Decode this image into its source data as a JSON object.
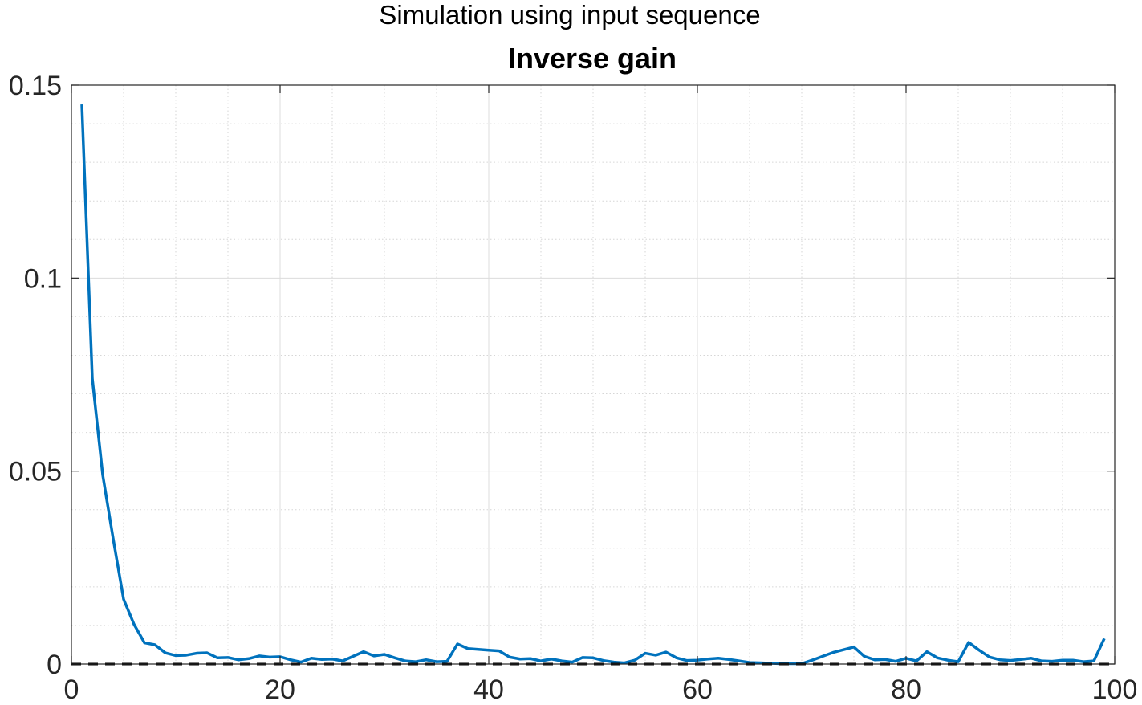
{
  "chart_data": {
    "type": "line",
    "subtitle": "Simulation using input sequence",
    "title": "Inverse gain",
    "xlabel": "",
    "ylabel": "",
    "xlim": [
      0,
      100
    ],
    "ylim": [
      0,
      0.15
    ],
    "xticks": [
      0,
      20,
      40,
      60,
      80,
      100
    ],
    "xtick_labels": [
      "0",
      "20",
      "40",
      "60",
      "80",
      "100"
    ],
    "yticks": [
      0,
      0.05,
      0.1,
      0.15
    ],
    "ytick_labels": [
      "0",
      "0.05",
      "0.1",
      "0.15"
    ],
    "x_minor_step": 5,
    "y_minor_step": 0.01,
    "grid": true,
    "minor_grid": true,
    "box": true,
    "series": [
      {
        "color": "#0072BD",
        "style": "solid",
        "x": [
          1,
          2,
          3,
          4,
          5,
          6,
          7,
          8,
          9,
          10,
          11,
          12,
          13,
          14,
          15,
          16,
          17,
          18,
          19,
          20,
          21,
          22,
          23,
          24,
          25,
          26,
          27,
          28,
          29,
          30,
          31,
          32,
          33,
          34,
          35,
          36,
          37,
          38,
          39,
          40,
          41,
          42,
          43,
          44,
          45,
          46,
          47,
          48,
          49,
          50,
          51,
          52,
          53,
          54,
          55,
          56,
          57,
          58,
          59,
          60,
          61,
          62,
          63,
          64,
          65,
          66,
          67,
          68,
          69,
          70,
          71,
          72,
          73,
          74,
          75,
          76,
          77,
          78,
          79,
          80,
          81,
          82,
          83,
          84,
          85,
          86,
          87,
          88,
          89,
          90,
          91,
          92,
          93,
          94,
          95,
          96,
          97,
          98,
          99
        ],
        "values": [
          0.145,
          0.074,
          0.049,
          0.0325,
          0.0168,
          0.0103,
          0.0055,
          0.005,
          0.0029,
          0.0022,
          0.0023,
          0.0028,
          0.0029,
          0.0016,
          0.0017,
          0.0011,
          0.0014,
          0.0021,
          0.0018,
          0.0019,
          0.0011,
          0.0005,
          0.0015,
          0.0012,
          0.0013,
          0.0008,
          0.002,
          0.0032,
          0.0021,
          0.0025,
          0.0016,
          0.0008,
          0.0006,
          0.0011,
          0.0006,
          0.0007,
          0.0052,
          0.004,
          0.0038,
          0.0036,
          0.0034,
          0.0018,
          0.0013,
          0.0014,
          0.0008,
          0.0013,
          0.0008,
          0.0005,
          0.0017,
          0.0016,
          0.0009,
          0.0005,
          0.0003,
          0.001,
          0.0028,
          0.0023,
          0.0031,
          0.0016,
          0.0009,
          0.001,
          0.0013,
          0.0015,
          0.0012,
          0.0008,
          0.0004,
          0.0003,
          0.0002,
          0.0001,
          0.0001,
          0.0001,
          0.001,
          0.002,
          0.003,
          0.0037,
          0.0044,
          0.002,
          0.0011,
          0.0012,
          0.0007,
          0.0015,
          0.0008,
          0.0032,
          0.0016,
          0.001,
          0.0006,
          0.0056,
          0.0036,
          0.0018,
          0.0011,
          0.0009,
          0.0012,
          0.0015,
          0.0008,
          0.0007,
          0.001,
          0.001,
          0.0006,
          0.0008,
          0.0066
        ]
      },
      {
        "color": "#000000",
        "style": "dashed",
        "x": [
          0,
          100
        ],
        "values": [
          0,
          0
        ]
      }
    ]
  }
}
